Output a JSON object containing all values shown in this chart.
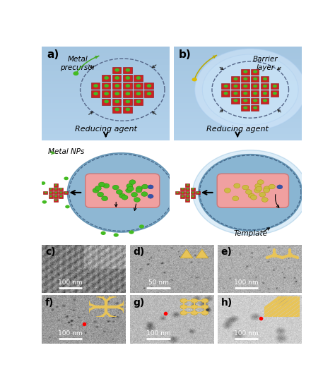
{
  "fig_width": 4.74,
  "fig_height": 5.47,
  "bg_color": "#ffffff",
  "panel_labels_c_to_h": [
    "c)",
    "d)",
    "e)",
    "f)",
    "g)",
    "h)"
  ],
  "scale_bar_texts": [
    "100 nm",
    "50 nm",
    "100 nm",
    "100 nm",
    "100 nm",
    "100 nm"
  ],
  "blue_bg_top": "#9bbfd8",
  "blue_bg_bottom": "#6a9ec0",
  "blue_sphere_color": "#6a9ec8",
  "blue_sphere_edge": "#4a7ea8",
  "pink_tube": "#f0a0a0",
  "pink_tube_edge": "#cc7777",
  "red_mof": "#cc2222",
  "red_mof_edge": "#881111",
  "green_dot": "#44bb22",
  "yellow_dot": "#ccbb44",
  "blue_dot": "#3355aa",
  "barrier_color": "#c8dff0",
  "barrier_edge": "#8ab0d0",
  "dashed_color": "#556688",
  "arrow_color": "#222222",
  "green_arrow": "#44aa22",
  "gold_arrow": "#bbaa00",
  "gold_inset_bg": "#c8a030",
  "gold_shape": "#e8c060",
  "white_text": "#ffffff",
  "black_text": "#111111"
}
